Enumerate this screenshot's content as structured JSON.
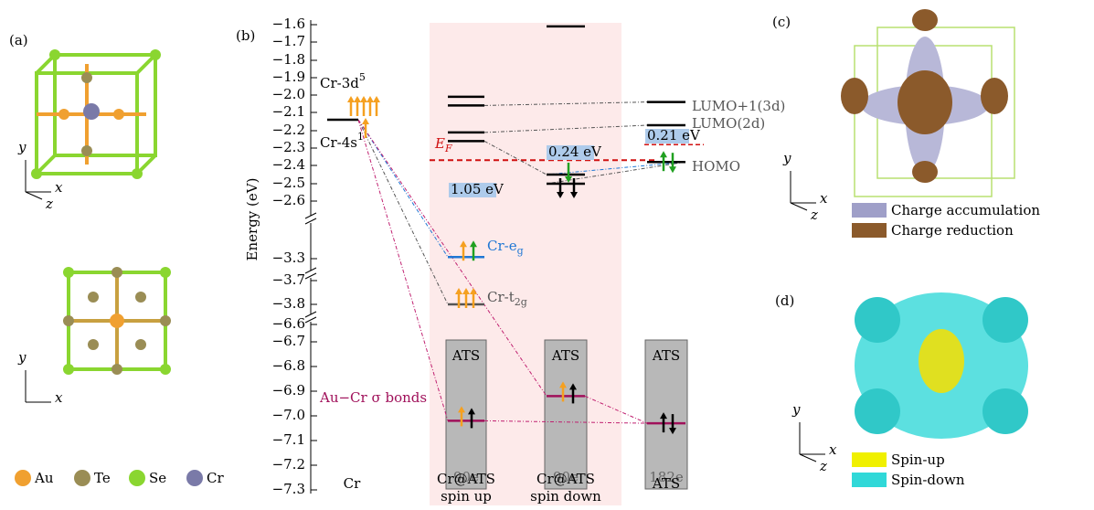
{
  "panels": [
    "(a)",
    "(b)",
    "(c)",
    "(d)"
  ],
  "triads": [
    {
      "y": "y",
      "x": "x",
      "z": "z"
    },
    {
      "y": "y",
      "x": "x"
    },
    {
      "y": "y",
      "x": "x",
      "z": "z"
    },
    {
      "y": "y",
      "x": "x",
      "z": "z"
    }
  ],
  "atom_legend": [
    {
      "name": "Au",
      "color": "#f0a030"
    },
    {
      "name": "Te",
      "color": "#9a8d55"
    },
    {
      "name": "Se",
      "color": "#8ad630"
    },
    {
      "name": "Cr",
      "color": "#7a7aa8"
    }
  ],
  "energy_axis": {
    "label": "Energy (eV)",
    "ticks": [
      {
        "value": -1.6,
        "label": "−1.6"
      },
      {
        "value": -1.7,
        "label": "−1.7"
      },
      {
        "value": -1.8,
        "label": "−1.8"
      },
      {
        "value": -1.9,
        "label": "−1.9"
      },
      {
        "value": -2.0,
        "label": "−2.0"
      },
      {
        "value": -2.1,
        "label": "−2.1"
      },
      {
        "value": -2.2,
        "label": "−2.2"
      },
      {
        "value": -2.3,
        "label": "−2.3"
      },
      {
        "value": -2.4,
        "label": "−2.4"
      },
      {
        "value": -2.5,
        "label": "−2.5"
      },
      {
        "value": -2.6,
        "label": "−2.6"
      },
      {
        "value": -3.3,
        "label": "−3.3"
      },
      {
        "value": -3.7,
        "label": "−3.7"
      },
      {
        "value": -3.8,
        "label": "−3.8"
      },
      {
        "value": -6.6,
        "label": "−6.6"
      },
      {
        "value": -6.7,
        "label": "−6.7"
      },
      {
        "value": -6.8,
        "label": "−6.8"
      },
      {
        "value": -6.9,
        "label": "−6.9"
      },
      {
        "value": -7.0,
        "label": "−7.0"
      },
      {
        "value": -7.1,
        "label": "−7.1"
      },
      {
        "value": -7.2,
        "label": "−7.2"
      },
      {
        "value": -7.3,
        "label": "−7.3"
      }
    ]
  },
  "columns": [
    [
      "Cr"
    ],
    [
      "Cr@ATS",
      "spin up"
    ],
    [
      "Cr@ATS",
      "spin down"
    ],
    [
      "ATS"
    ]
  ],
  "levels": [
    {
      "column": 0,
      "energy": -2.14,
      "color": "#000000"
    },
    {
      "column": 1,
      "energy": -2.01,
      "color": "#000000"
    },
    {
      "column": 1,
      "energy": -2.06,
      "color": "#000000"
    },
    {
      "column": 1,
      "energy": -2.21,
      "color": "#000000"
    },
    {
      "column": 1,
      "energy": -2.26,
      "color": "#000000"
    },
    {
      "column": 1,
      "energy": -3.28,
      "color": "#1f77d4"
    },
    {
      "column": 1,
      "energy": -3.8,
      "color": "#555555"
    },
    {
      "column": 1,
      "energy": -7.02,
      "color": "#a0105a"
    },
    {
      "column": 2,
      "energy": -1.61,
      "color": "#000000"
    },
    {
      "column": 2,
      "energy": -2.45,
      "color": "#000000"
    },
    {
      "column": 2,
      "energy": -2.5,
      "color": "#000000"
    },
    {
      "column": 2,
      "energy": -6.92,
      "color": "#a0105a"
    },
    {
      "column": 3,
      "energy": -2.04,
      "color": "#000000"
    },
    {
      "column": 3,
      "energy": -2.17,
      "color": "#000000"
    },
    {
      "column": 3,
      "energy": -2.38,
      "color": "#000000"
    },
    {
      "column": 3,
      "energy": -7.03,
      "color": "#a0105a"
    }
  ],
  "fermi_level": -2.37,
  "ats_fermi_level": -2.28,
  "labels": {
    "cr_3d": {
      "text": "Cr-3d",
      "sup": "5"
    },
    "cr_4s": {
      "text": "Cr-4s",
      "sup": "1"
    },
    "fermi": {
      "text": "E",
      "sub": "F"
    },
    "cr_eg": {
      "text": "Cr-e",
      "sub": "g"
    },
    "cr_t2g": {
      "text": "Cr-t",
      "sub": "2g"
    },
    "lumo1": "LUMO+1(3d)",
    "lumo": "LUMO(2d)",
    "homo": "HOMO",
    "bond": "Au−Cr σ bonds"
  },
  "gaps": [
    "1.05 eV",
    "0.24 eV",
    "0.21 eV"
  ],
  "ats_boxes": [
    {
      "label": "ATS",
      "electrons": "90e"
    },
    {
      "label": "ATS",
      "electrons": "90e"
    },
    {
      "label": "ATS",
      "electrons": "182e"
    }
  ],
  "legend_c": [
    {
      "name": "Charge accumulation",
      "color": "#9f9fc8"
    },
    {
      "name": "Charge reduction",
      "color": "#8b5a2b"
    }
  ],
  "legend_d": [
    {
      "name": "Spin-up",
      "color": "#f0f000"
    },
    {
      "name": "Spin-down",
      "color": "#30d8d8"
    }
  ]
}
